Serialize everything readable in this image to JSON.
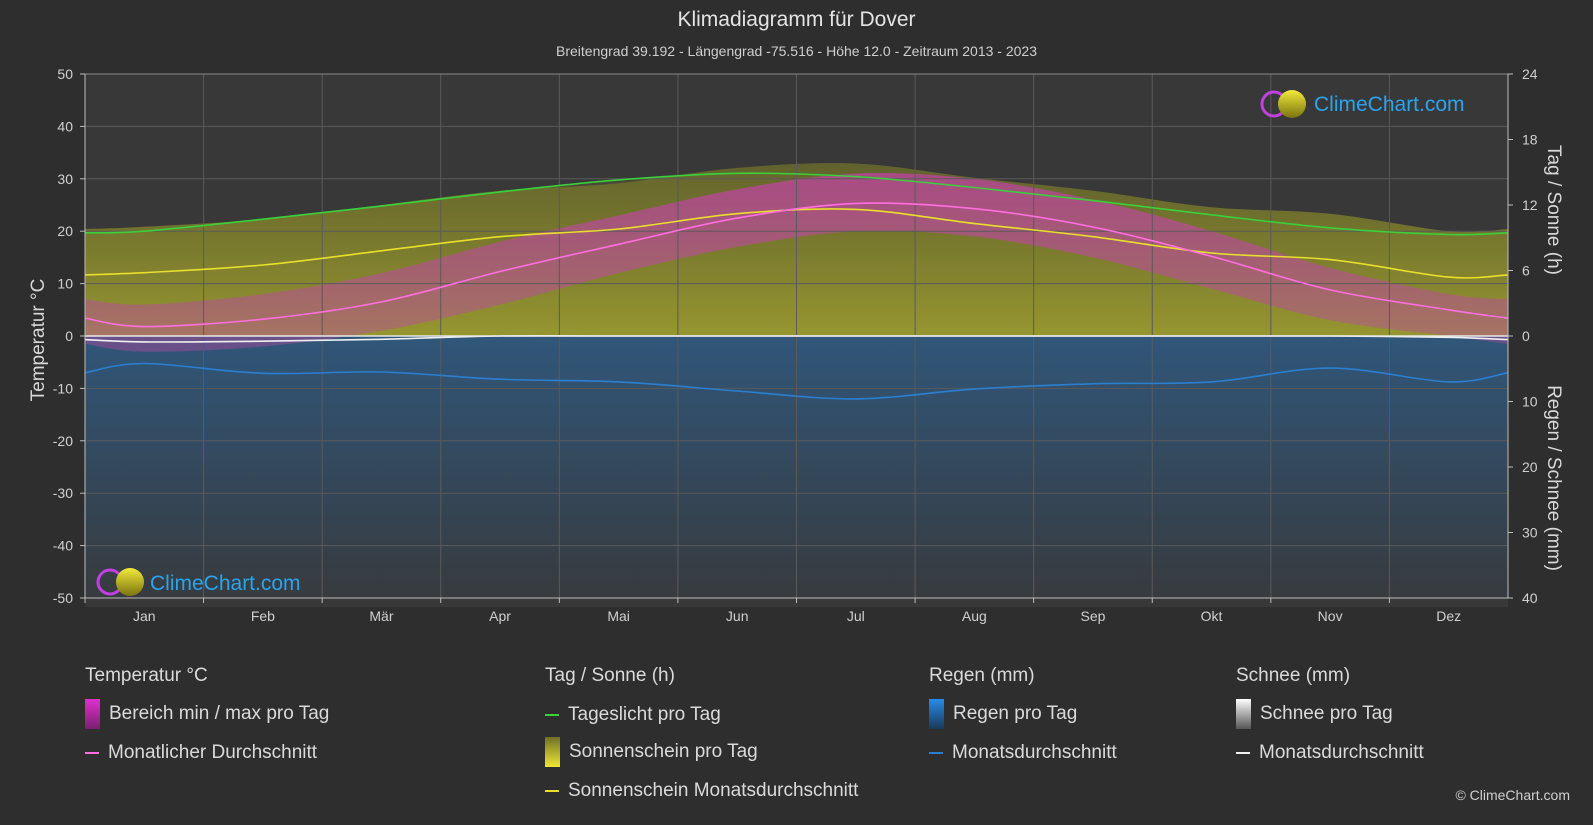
{
  "title": "Klimadiagramm für Dover",
  "subtitle": "Breitengrad 39.192 - Längengrad -75.516 - Höhe 12.0 - Zeitraum 2013 - 2023",
  "brand": "ClimeChart.com",
  "copyright": "© ClimeChart.com",
  "colors": {
    "background": "#2e2e2e",
    "plot_bg": "#383838",
    "daylight": "#3ad13a",
    "sunshine_avg": "#e8e02a",
    "sunshine_fill": "#8f8f2a",
    "temp_avg": "#ff6ee0",
    "temp_range": "#c23aa8",
    "rain": "#2a7fd0",
    "snow": "#f0f0f0",
    "brand_text": "#2aa4ef"
  },
  "legend": {
    "temp": {
      "header": "Temperatur °C",
      "range": "Bereich min / max pro Tag",
      "avg": "Monatlicher Durchschnitt"
    },
    "sun": {
      "header": "Tag / Sonne (h)",
      "daylight": "Tageslicht pro Tag",
      "sunshine": "Sonnenschein pro Tag",
      "sunshine_avg": "Sonnenschein Monatsdurchschnitt"
    },
    "rain": {
      "header": "Regen (mm)",
      "per_day": "Regen pro Tag",
      "avg": "Monatsdurchschnitt"
    },
    "snow": {
      "header": "Schnee (mm)",
      "per_day": "Schnee pro Tag",
      "avg": "Monatsdurchschnitt"
    }
  },
  "chart_data": {
    "type": "line",
    "categories": [
      "Jan",
      "Feb",
      "Mär",
      "Apr",
      "Mai",
      "Jun",
      "Jul",
      "Aug",
      "Sep",
      "Okt",
      "Nov",
      "Dez"
    ],
    "y_left": {
      "label": "Temperatur °C",
      "range": [
        -50,
        50
      ],
      "ticks": [
        50,
        40,
        30,
        20,
        10,
        0,
        -10,
        -20,
        -30,
        -40,
        -50
      ]
    },
    "y_right_top": {
      "label": "Tag / Sonne (h)",
      "range": [
        0,
        24
      ],
      "ticks": [
        24,
        18,
        12,
        6,
        0
      ]
    },
    "y_right_bottom": {
      "label": "Regen / Schnee (mm)",
      "range": [
        0,
        40
      ],
      "ticks": [
        10,
        20,
        30,
        40
      ]
    },
    "grid": true,
    "series": [
      {
        "name": "Tageslicht pro Tag",
        "axis": "sun_h",
        "values": [
          9.6,
          10.7,
          11.9,
          13.2,
          14.3,
          14.9,
          14.6,
          13.6,
          12.4,
          11.1,
          9.9,
          9.3
        ]
      },
      {
        "name": "Sonnenschein Monatsdurchschnitt",
        "axis": "sun_h",
        "values": [
          5.8,
          6.5,
          7.8,
          9.1,
          9.8,
          11.2,
          11.6,
          10.3,
          9.1,
          7.6,
          7.0,
          5.4
        ]
      },
      {
        "name": "Monatlicher Durchschnitt",
        "axis": "temp_c",
        "values": [
          1.8,
          3.2,
          6.5,
          12.3,
          17.5,
          22.5,
          25.3,
          24.3,
          20.8,
          15.2,
          8.8,
          5.0
        ]
      },
      {
        "name": "Regen Monatsdurchschnitt",
        "axis": "precip_mm",
        "values": [
          4.2,
          5.7,
          5.5,
          6.6,
          7.0,
          8.4,
          9.6,
          8.1,
          7.3,
          7.0,
          4.9,
          7.0
        ]
      },
      {
        "name": "Schnee Monatsdurchschnitt",
        "axis": "precip_mm",
        "values": [
          0.9,
          0.8,
          0.5,
          0.0,
          0.0,
          0.0,
          0.0,
          0.0,
          0.0,
          0.0,
          0.0,
          0.2
        ]
      }
    ],
    "temp_range_max": [
      6,
      8,
      12,
      18,
      23,
      28,
      31,
      30,
      26,
      20,
      13,
      8
    ],
    "temp_range_min": [
      -3,
      -2,
      1,
      6,
      12,
      17,
      20,
      19,
      15,
      9,
      3,
      0
    ]
  }
}
